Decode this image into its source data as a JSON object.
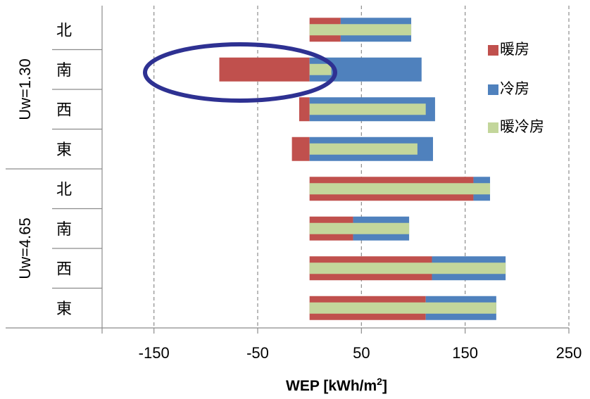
{
  "chart_data": {
    "type": "bar",
    "orientation": "horizontal",
    "xlabel": "WEP [kWh/m",
    "xlabel_sup": "2",
    "xlabel_end": "]",
    "xlim": [
      -200,
      250
    ],
    "xticks": [
      "-150",
      "-50",
      "50",
      "150",
      "250"
    ],
    "xtick_values": [
      -150,
      -50,
      50,
      150,
      250
    ],
    "grid": "vertical dashed",
    "legend_position": "right",
    "groups": [
      {
        "label": "Uw=1.30",
        "categories": [
          "北",
          "南",
          "西",
          "東"
        ]
      },
      {
        "label": "Uw=4.65",
        "categories": [
          "北",
          "南",
          "西",
          "東"
        ]
      }
    ],
    "series": [
      {
        "name": "暖房",
        "color": "#c0504d",
        "values": [
          30,
          -87,
          -10,
          -17,
          158,
          42,
          118,
          112
        ]
      },
      {
        "name": "冷房",
        "color": "#4f81bd",
        "values": [
          98,
          108,
          121,
          119,
          174,
          96,
          189,
          180
        ]
      },
      {
        "name": "暖冷房",
        "color": "#c3d69b",
        "values": [
          98,
          21,
          112,
          104,
          174,
          96,
          189,
          180
        ]
      }
    ],
    "highlight": {
      "group": 0,
      "category": "南",
      "shape": "ellipse",
      "color": "#2e3192"
    }
  }
}
